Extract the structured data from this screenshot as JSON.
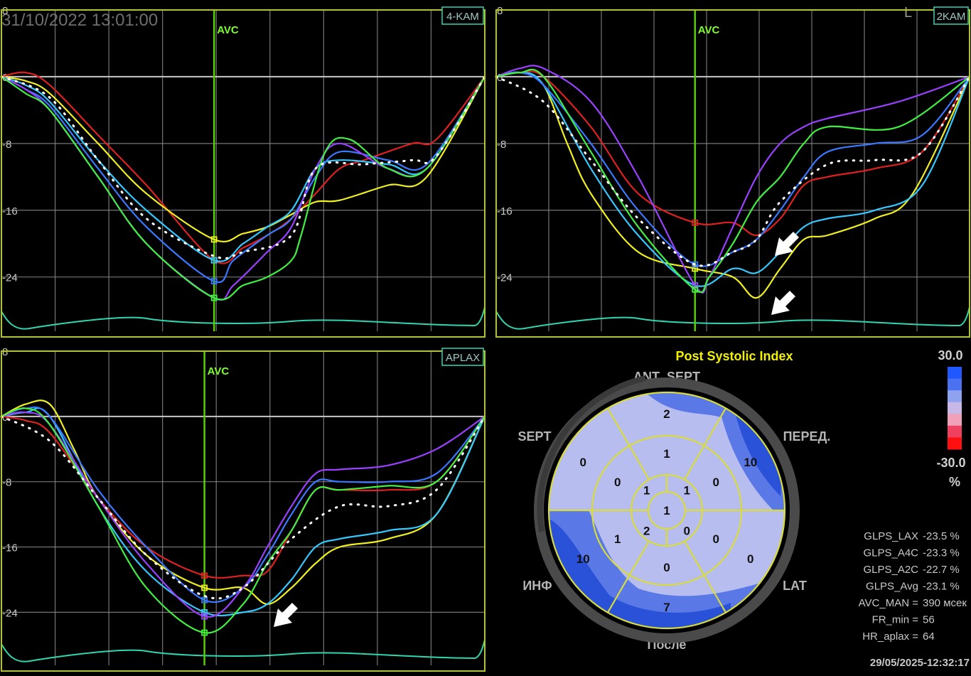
{
  "header": {
    "datetime": "31/10/2022 13:01:00",
    "corner_mark": "L"
  },
  "chart_data": [
    {
      "type": "line",
      "view": "4-KAM",
      "avc_label": "AVC",
      "yticks": [
        "8",
        "0",
        "-8",
        "-16",
        "-24"
      ],
      "ylim": [
        -30.5,
        8
      ],
      "xlim": [
        0,
        1
      ],
      "avc_x": 0.44,
      "series": [
        {
          "color": "#e02020",
          "x": [
            0,
            0.05,
            0.1,
            0.2,
            0.3,
            0.44,
            0.5,
            0.55,
            0.6,
            0.65,
            0.7,
            0.75,
            0.85,
            0.9,
            1
          ],
          "y": [
            0,
            0.5,
            -1,
            -7,
            -13,
            -22,
            -20.5,
            -19,
            -17,
            -14,
            -11,
            -10,
            -8,
            -7.5,
            0
          ]
        },
        {
          "color": "#f0f020",
          "x": [
            0,
            0.05,
            0.1,
            0.2,
            0.3,
            0.44,
            0.5,
            0.55,
            0.6,
            0.65,
            0.7,
            0.8,
            0.88,
            1
          ],
          "y": [
            0,
            -0.5,
            -2,
            -8,
            -14,
            -19.5,
            -18.8,
            -18,
            -16.5,
            -15,
            -14.8,
            -13,
            -12,
            0
          ]
        },
        {
          "color": "#34c8ff",
          "x": [
            0,
            0.05,
            0.1,
            0.2,
            0.3,
            0.44,
            0.5,
            0.55,
            0.6,
            0.65,
            0.7,
            0.8,
            0.88,
            1
          ],
          "y": [
            0,
            -1,
            -3,
            -10,
            -16,
            -22,
            -20,
            -18,
            -16,
            -11,
            -10,
            -10.5,
            -11,
            0
          ]
        },
        {
          "color": "#3a78ff",
          "x": [
            0,
            0.05,
            0.1,
            0.2,
            0.3,
            0.44,
            0.48,
            0.55,
            0.6,
            0.65,
            0.7,
            0.8,
            0.88,
            1
          ],
          "y": [
            0,
            -1.5,
            -3.5,
            -11,
            -18,
            -24.5,
            -22,
            -19,
            -17,
            -12,
            -9,
            -10,
            -10.5,
            0
          ]
        },
        {
          "color": "#9a40ff",
          "x": [
            0,
            0.05,
            0.1,
            0.2,
            0.3,
            0.44,
            0.48,
            0.55,
            0.6,
            0.65,
            0.7,
            0.8,
            0.88,
            1
          ],
          "y": [
            0,
            -1.5,
            -4,
            -12,
            -20,
            -26.5,
            -25,
            -21,
            -18,
            -11,
            -8,
            -11,
            -11,
            0
          ]
        },
        {
          "color": "#40f040",
          "x": [
            0,
            0.05,
            0.1,
            0.2,
            0.3,
            0.44,
            0.5,
            0.55,
            0.6,
            0.62,
            0.67,
            0.72,
            0.8,
            0.88,
            1
          ],
          "y": [
            0,
            -2,
            -4,
            -12,
            -20,
            -26.5,
            -25,
            -24,
            -22,
            -19,
            -9,
            -7.5,
            -11,
            -11,
            0
          ]
        }
      ],
      "average": {
        "x": [
          0,
          0.1,
          0.2,
          0.3,
          0.44,
          0.5,
          0.6,
          0.65,
          0.75,
          0.85,
          0.9,
          1
        ],
        "y": [
          0,
          -2.5,
          -10,
          -17,
          -21.5,
          -21,
          -19,
          -11,
          -10.5,
          -10,
          -9.5,
          0
        ]
      }
    },
    {
      "type": "line",
      "view": "2KAM",
      "avc_label": "AVC",
      "yticks": [
        "8",
        "0",
        "-8",
        "-16",
        "-24"
      ],
      "ylim": [
        -30.5,
        8
      ],
      "xlim": [
        0,
        1
      ],
      "avc_x": 0.42,
      "series": [
        {
          "color": "#e02020",
          "x": [
            0,
            0.05,
            0.1,
            0.2,
            0.3,
            0.42,
            0.5,
            0.55,
            0.6,
            0.65,
            0.7,
            0.8,
            0.9,
            1
          ],
          "y": [
            0,
            0.5,
            0,
            -6,
            -14,
            -17.5,
            -17.5,
            -19,
            -17,
            -13,
            -12,
            -11,
            -9,
            0
          ]
        },
        {
          "color": "#f0f020",
          "x": [
            0,
            0.05,
            0.1,
            0.15,
            0.2,
            0.3,
            0.42,
            0.5,
            0.55,
            0.6,
            0.65,
            0.7,
            0.8,
            0.88,
            1
          ],
          "y": [
            0,
            0.5,
            -1,
            -8,
            -14,
            -21,
            -23,
            -24,
            -26.5,
            -23,
            -19.5,
            -19,
            -17,
            -14,
            0
          ]
        },
        {
          "color": "#34c8ff",
          "x": [
            0,
            0.05,
            0.1,
            0.2,
            0.3,
            0.42,
            0.5,
            0.55,
            0.6,
            0.65,
            0.7,
            0.8,
            0.9,
            1
          ],
          "y": [
            0,
            0.5,
            -1,
            -11,
            -19,
            -25,
            -23,
            -23.5,
            -21,
            -18,
            -17,
            -16,
            -13,
            0
          ]
        },
        {
          "color": "#3a78ff",
          "x": [
            0,
            0.05,
            0.1,
            0.2,
            0.3,
            0.42,
            0.5,
            0.55,
            0.6,
            0.65,
            0.7,
            0.8,
            0.9,
            1
          ],
          "y": [
            0,
            0.5,
            -1,
            -8,
            -16,
            -22.5,
            -21,
            -19.5,
            -16,
            -12,
            -9,
            -8,
            -7,
            0
          ]
        },
        {
          "color": "#9a40ff",
          "x": [
            0,
            0.05,
            0.1,
            0.2,
            0.3,
            0.42,
            0.45,
            0.5,
            0.55,
            0.6,
            0.65,
            0.7,
            0.85,
            1
          ],
          "y": [
            0,
            1,
            1,
            -3,
            -12,
            -25,
            -24,
            -18,
            -12,
            -8,
            -6,
            -5,
            -3,
            0
          ]
        },
        {
          "color": "#40f040",
          "x": [
            0,
            0.05,
            0.1,
            0.2,
            0.3,
            0.42,
            0.45,
            0.5,
            0.55,
            0.6,
            0.65,
            0.7,
            0.85,
            1
          ],
          "y": [
            0,
            0.5,
            0,
            -9,
            -18,
            -25.5,
            -24,
            -20,
            -15,
            -12,
            -8,
            -6,
            -6,
            0
          ]
        }
      ],
      "average": {
        "x": [
          0,
          0.1,
          0.2,
          0.3,
          0.42,
          0.5,
          0.55,
          0.6,
          0.7,
          0.8,
          0.9,
          1
        ],
        "y": [
          0,
          -3,
          -10,
          -17,
          -22.5,
          -21,
          -19.5,
          -15,
          -10.5,
          -10,
          -9,
          0
        ]
      }
    },
    {
      "type": "line",
      "view": "APLAX",
      "avc_label": "AVC",
      "yticks": [
        "8",
        "0",
        "-8",
        "-16",
        "-24"
      ],
      "ylim": [
        -30.5,
        8
      ],
      "xlim": [
        0,
        1
      ],
      "avc_x": 0.42,
      "series": [
        {
          "color": "#e02020",
          "x": [
            0,
            0.05,
            0.1,
            0.2,
            0.3,
            0.42,
            0.5,
            0.55,
            0.6,
            0.65,
            0.7,
            0.8,
            0.9,
            1
          ],
          "y": [
            0,
            -0.5,
            -2,
            -10,
            -16,
            -19.5,
            -19.5,
            -19,
            -14,
            -9,
            -9,
            -9,
            -8,
            0
          ]
        },
        {
          "color": "#f0f020",
          "x": [
            0,
            0.05,
            0.1,
            0.15,
            0.2,
            0.3,
            0.42,
            0.5,
            0.55,
            0.6,
            0.65,
            0.7,
            0.8,
            0.9,
            1
          ],
          "y": [
            0,
            1.5,
            1.5,
            -4,
            -10,
            -17,
            -21,
            -21,
            -23,
            -21,
            -18,
            -16,
            -15,
            -12,
            0
          ]
        },
        {
          "color": "#34c8ff",
          "x": [
            0,
            0.05,
            0.1,
            0.2,
            0.3,
            0.42,
            0.5,
            0.55,
            0.6,
            0.65,
            0.7,
            0.8,
            0.9,
            1
          ],
          "y": [
            0,
            0.5,
            0,
            -11,
            -19,
            -24,
            -24,
            -23,
            -20,
            -16,
            -15,
            -14,
            -12,
            0
          ]
        },
        {
          "color": "#3a78ff",
          "x": [
            0,
            0.05,
            0.1,
            0.2,
            0.3,
            0.42,
            0.5,
            0.55,
            0.6,
            0.65,
            0.7,
            0.8,
            0.9,
            1
          ],
          "y": [
            0,
            1,
            0,
            -9,
            -16,
            -22.5,
            -21,
            -17,
            -12,
            -8,
            -8,
            -8,
            -7,
            0
          ]
        },
        {
          "color": "#9a40ff",
          "x": [
            0,
            0.05,
            0.1,
            0.2,
            0.3,
            0.42,
            0.5,
            0.55,
            0.6,
            0.65,
            0.7,
            0.8,
            0.9,
            1
          ],
          "y": [
            0,
            0.5,
            -1,
            -10,
            -18,
            -24.5,
            -21,
            -16,
            -11,
            -7,
            -6.5,
            -6,
            -4,
            0
          ]
        },
        {
          "color": "#40f040",
          "x": [
            0,
            0.05,
            0.1,
            0.2,
            0.3,
            0.42,
            0.5,
            0.55,
            0.6,
            0.65,
            0.7,
            0.8,
            0.9,
            1
          ],
          "y": [
            0,
            1,
            -1,
            -11,
            -21,
            -26.5,
            -23,
            -18,
            -14,
            -9,
            -9,
            -8.5,
            -8,
            0
          ]
        }
      ],
      "average": {
        "x": [
          0,
          0.1,
          0.2,
          0.3,
          0.42,
          0.5,
          0.6,
          0.7,
          0.8,
          0.9,
          1
        ],
        "y": [
          0,
          -3,
          -10,
          -17,
          -22,
          -21,
          -15,
          -11,
          -11,
          -9,
          0
        ]
      }
    }
  ],
  "bullseye": {
    "title": "Post Systolic Index",
    "labels": {
      "ant_sept": "ANT_SEPT",
      "sept": "SEPT",
      "front": "ПЕРЕД.",
      "inf": "ИНФ",
      "lat": "LAT",
      "post": "После"
    },
    "segments": {
      "basal": [
        "2",
        "10",
        "0",
        "7",
        "10",
        "0"
      ],
      "mid": [
        "1",
        "0",
        "0",
        "0",
        "1",
        "0"
      ],
      "apical": [
        "1",
        "1",
        "0",
        "2"
      ],
      "apex": "1"
    },
    "colors": {
      "light": "#b8bdf0",
      "mid": "#5a78e6",
      "dark": "#2a52d8",
      "ring": "#4a4a4a"
    }
  },
  "color_scale": {
    "max": "30.0",
    "min": "-30.0",
    "unit": "%",
    "stops": [
      "#1f58ff",
      "#4a72f0",
      "#8fa2f0",
      "#c8b8e8",
      "#f0a0b8",
      "#f04060",
      "#ff1010"
    ]
  },
  "stats": [
    {
      "label": "GLPS_LAX",
      "value": "-23.5 %"
    },
    {
      "label": "GLPS_A4C",
      "value": "-23.3 %"
    },
    {
      "label": "GLPS_A2C",
      "value": "-22.7 %"
    },
    {
      "label": "GLPS_Avg",
      "value": "-23.1 %"
    },
    {
      "label": "AVC_MAN =",
      "value": "390 мсек"
    },
    {
      "label": "FR_min =",
      "value": "56"
    },
    {
      "label": "HR_aplax =",
      "value": "64"
    }
  ],
  "footer": {
    "timestamp": "29/05/2025-12:32:17"
  }
}
